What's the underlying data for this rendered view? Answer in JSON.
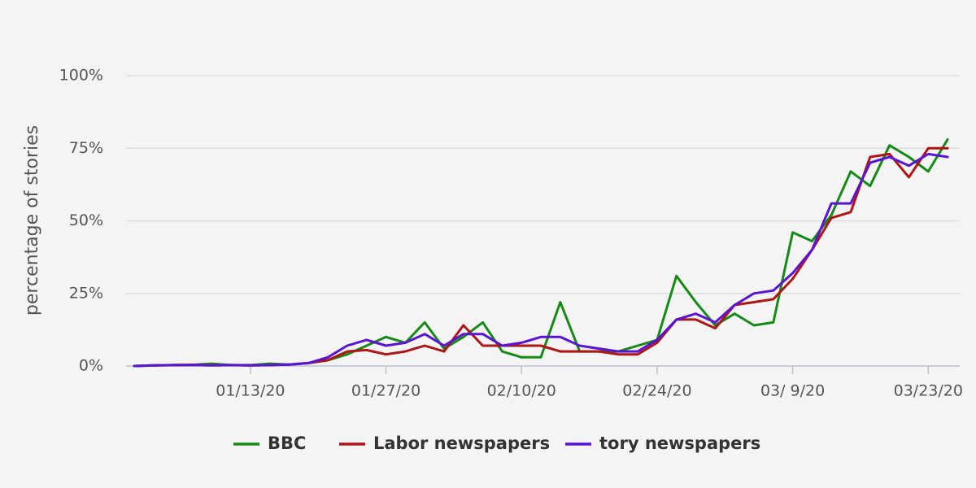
{
  "chart_data": {
    "type": "line",
    "y_label": "percentage of stories",
    "x": [
      "01/01/20",
      "01/03/20",
      "01/05/20",
      "01/07/20",
      "01/09/20",
      "01/11/20",
      "01/13/20",
      "01/15/20",
      "01/17/20",
      "01/19/20",
      "01/21/20",
      "01/23/20",
      "01/25/20",
      "01/27/20",
      "01/29/20",
      "01/31/20",
      "02/02/20",
      "02/04/20",
      "02/06/20",
      "02/08/20",
      "02/10/20",
      "02/12/20",
      "02/14/20",
      "02/16/20",
      "02/18/20",
      "02/20/20",
      "02/22/20",
      "02/24/20",
      "02/26/20",
      "02/28/20",
      "03/01/20",
      "03/03/20",
      "03/05/20",
      "03/07/20",
      "03/09/20",
      "03/11/20",
      "03/13/20",
      "03/15/20",
      "03/17/20",
      "03/19/20",
      "03/21/20",
      "03/23/20",
      "03/25/20"
    ],
    "series": [
      {
        "name": "BBC",
        "color": "#168a16",
        "values": [
          0,
          0.2,
          0.3,
          0.4,
          0.8,
          0.3,
          0.3,
          0.8,
          0.5,
          1,
          2,
          4,
          7,
          10,
          8,
          15,
          6,
          10,
          15,
          5,
          3,
          3,
          22,
          5,
          5,
          5,
          7,
          9,
          31,
          22,
          14,
          18,
          14,
          15,
          46,
          43,
          52,
          67,
          62,
          76,
          72,
          67,
          78
        ]
      },
      {
        "name": "Labor newspapers",
        "color": "#b01414",
        "values": [
          0,
          0.2,
          0.3,
          0.4,
          0.3,
          0.3,
          0.2,
          0.3,
          0.5,
          1,
          2,
          5,
          5.5,
          4,
          5,
          7,
          5,
          14,
          7,
          7,
          7,
          7,
          5,
          5,
          5,
          4,
          4,
          8,
          16,
          16,
          13,
          21,
          22,
          23,
          30,
          40,
          51,
          53,
          72,
          73,
          65,
          75,
          75
        ]
      },
      {
        "name": "tory newspapers",
        "color": "#5a14d8",
        "values": [
          0,
          0.2,
          0.3,
          0.4,
          0.2,
          0.3,
          0.2,
          0.3,
          0.5,
          1,
          3,
          7,
          9,
          7,
          8,
          11,
          7,
          11,
          11,
          7,
          8,
          10,
          10,
          7,
          6,
          5,
          5,
          9,
          16,
          18,
          15,
          21,
          25,
          26,
          32,
          40,
          56,
          56,
          70,
          72,
          69,
          73,
          72
        ]
      }
    ],
    "xlim": [
      "01/01/20",
      "03/26/20"
    ],
    "xticks": [
      "01/13/20",
      "01/27/20",
      "02/10/20",
      "02/24/20",
      {
        "value": "03/09/20",
        "label": "03/ 9/20"
      },
      "03/23/20"
    ],
    "ylim": [
      0,
      100
    ],
    "yticks": [
      {
        "value": 0,
        "label": "0%"
      },
      {
        "value": 25,
        "label": "25%"
      },
      {
        "value": 50,
        "label": "50%"
      },
      {
        "value": 75,
        "label": "75%"
      },
      {
        "value": 100,
        "label": "100%"
      }
    ],
    "grid": true,
    "legend": "bottom"
  }
}
